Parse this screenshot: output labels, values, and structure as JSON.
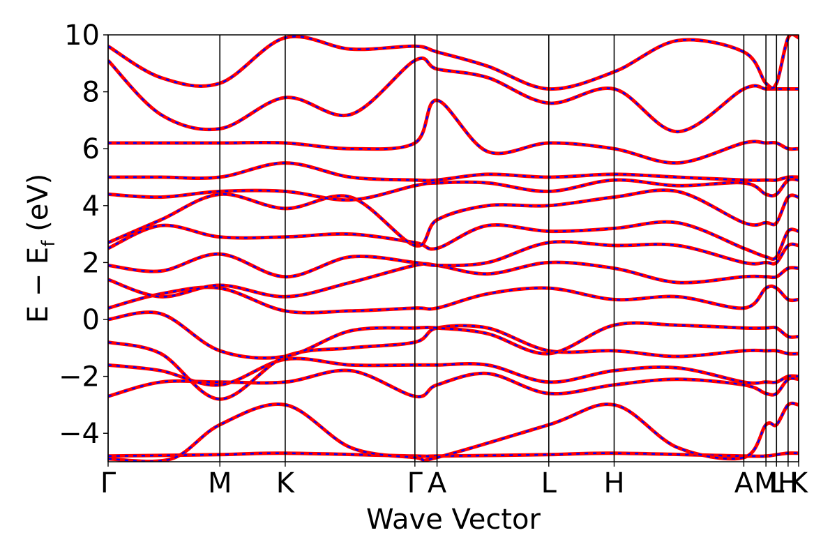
{
  "chart_data": {
    "type": "line",
    "title": "",
    "xlabel": "Wave Vector",
    "ylabel_main": "E − E",
    "ylabel_sub": "f",
    "ylabel_unit": " (eV)",
    "ylim": [
      -5,
      10
    ],
    "yticks": [
      -4,
      -2,
      0,
      2,
      4,
      6,
      8,
      10
    ],
    "ytick_labels": [
      "−4",
      "−2",
      "0",
      "2",
      "4",
      "6",
      "8",
      "10"
    ],
    "x_range": [
      0,
      6.55
    ],
    "high_symmetry_points": [
      {
        "label": "Γ",
        "x": 0.0
      },
      {
        "label": "M",
        "x": 1.06
      },
      {
        "label": "K",
        "x": 1.68
      },
      {
        "label": "Γ",
        "x": 2.91
      },
      {
        "label": "A",
        "x": 3.12
      },
      {
        "label": "L",
        "x": 4.18
      },
      {
        "label": "H",
        "x": 4.8
      },
      {
        "label": "A",
        "x": 6.03
      },
      {
        "label": "M",
        "x": 6.24
      },
      {
        "label": "L",
        "x": 6.34
      },
      {
        "label": "H",
        "x": 6.45
      },
      {
        "label": "K",
        "x": 6.55
      }
    ],
    "grid": false,
    "legend": "none",
    "series_styles": [
      {
        "color": "#ff0000",
        "style": "solid"
      },
      {
        "color": "#0000ff",
        "style": "dashed"
      }
    ],
    "bands": [
      [
        [
          0,
          -4.8
        ],
        [
          1.06,
          -4.75
        ],
        [
          1.68,
          -4.7
        ],
        [
          2.91,
          -4.8
        ],
        [
          3.12,
          -4.8
        ],
        [
          4.18,
          -4.75
        ],
        [
          4.8,
          -4.7
        ],
        [
          6.03,
          -4.8
        ],
        [
          6.24,
          -4.8
        ],
        [
          6.34,
          -4.75
        ],
        [
          6.45,
          -4.7
        ],
        [
          6.55,
          -4.7
        ]
      ],
      [
        [
          0,
          -4.9
        ],
        [
          0.6,
          -4.9
        ],
        [
          1.06,
          -3.7
        ],
        [
          1.68,
          -3.0
        ],
        [
          2.3,
          -4.5
        ],
        [
          2.91,
          -4.85
        ],
        [
          3.12,
          -4.85
        ],
        [
          4.18,
          -3.7
        ],
        [
          4.8,
          -3.0
        ],
        [
          5.4,
          -4.5
        ],
        [
          6.03,
          -4.85
        ],
        [
          6.24,
          -3.7
        ],
        [
          6.34,
          -3.7
        ],
        [
          6.45,
          -3.0
        ],
        [
          6.55,
          -3.0
        ]
      ],
      [
        [
          0,
          -2.7
        ],
        [
          0.5,
          -2.2
        ],
        [
          1.06,
          -2.2
        ],
        [
          1.68,
          -2.2
        ],
        [
          2.3,
          -1.8
        ],
        [
          2.91,
          -2.7
        ],
        [
          3.12,
          -2.3
        ],
        [
          3.6,
          -1.9
        ],
        [
          4.18,
          -2.6
        ],
        [
          4.8,
          -2.3
        ],
        [
          5.4,
          -2.1
        ],
        [
          6.03,
          -2.3
        ],
        [
          6.24,
          -2.6
        ],
        [
          6.34,
          -2.6
        ],
        [
          6.45,
          -2.1
        ],
        [
          6.55,
          -2.1
        ]
      ],
      [
        [
          0,
          -1.6
        ],
        [
          0.5,
          -1.8
        ],
        [
          1.06,
          -2.3
        ],
        [
          1.68,
          -1.4
        ],
        [
          2.3,
          -1.6
        ],
        [
          2.91,
          -1.6
        ],
        [
          3.12,
          -1.6
        ],
        [
          3.6,
          -1.6
        ],
        [
          4.18,
          -2.2
        ],
        [
          4.8,
          -1.8
        ],
        [
          5.4,
          -1.7
        ],
        [
          6.03,
          -2.2
        ],
        [
          6.24,
          -2.2
        ],
        [
          6.34,
          -2.2
        ],
        [
          6.45,
          -2.0
        ],
        [
          6.55,
          -2.0
        ]
      ],
      [
        [
          0,
          -0.8
        ],
        [
          0.5,
          -1.2
        ],
        [
          1.06,
          -2.8
        ],
        [
          1.68,
          -1.3
        ],
        [
          2.3,
          -1.0
        ],
        [
          2.91,
          -0.8
        ],
        [
          3.12,
          -0.3
        ],
        [
          3.6,
          -0.3
        ],
        [
          4.18,
          -1.1
        ],
        [
          4.8,
          -1.1
        ],
        [
          5.4,
          -1.3
        ],
        [
          6.03,
          -1.1
        ],
        [
          6.24,
          -1.1
        ],
        [
          6.34,
          -1.1
        ],
        [
          6.45,
          -1.2
        ],
        [
          6.55,
          -1.2
        ]
      ],
      [
        [
          0,
          0.0
        ],
        [
          0.5,
          0.2
        ],
        [
          1.06,
          -1.1
        ],
        [
          1.68,
          -1.3
        ],
        [
          2.3,
          -0.4
        ],
        [
          2.91,
          -0.3
        ],
        [
          3.12,
          -0.3
        ],
        [
          3.6,
          -0.5
        ],
        [
          4.18,
          -1.2
        ],
        [
          4.8,
          -0.2
        ],
        [
          5.4,
          -0.2
        ],
        [
          6.03,
          -0.3
        ],
        [
          6.24,
          -0.3
        ],
        [
          6.34,
          -0.3
        ],
        [
          6.45,
          -0.6
        ],
        [
          6.55,
          -0.6
        ]
      ],
      [
        [
          0,
          0.4
        ],
        [
          0.5,
          0.9
        ],
        [
          1.06,
          1.1
        ],
        [
          1.68,
          0.3
        ],
        [
          2.3,
          0.3
        ],
        [
          2.91,
          0.4
        ],
        [
          3.12,
          0.4
        ],
        [
          3.6,
          0.9
        ],
        [
          4.18,
          1.1
        ],
        [
          4.8,
          0.7
        ],
        [
          5.4,
          0.8
        ],
        [
          6.03,
          0.4
        ],
        [
          6.24,
          1.1
        ],
        [
          6.34,
          1.1
        ],
        [
          6.45,
          0.7
        ],
        [
          6.55,
          0.7
        ]
      ],
      [
        [
          0,
          1.4
        ],
        [
          0.5,
          0.8
        ],
        [
          1.06,
          1.2
        ],
        [
          1.68,
          0.8
        ],
        [
          2.3,
          1.3
        ],
        [
          2.91,
          1.9
        ],
        [
          3.12,
          1.9
        ],
        [
          3.6,
          1.6
        ],
        [
          4.18,
          2.0
        ],
        [
          4.8,
          1.8
        ],
        [
          5.4,
          1.3
        ],
        [
          6.03,
          1.5
        ],
        [
          6.24,
          1.5
        ],
        [
          6.34,
          1.5
        ],
        [
          6.45,
          1.8
        ],
        [
          6.55,
          1.8
        ]
      ],
      [
        [
          0,
          1.9
        ],
        [
          0.5,
          1.7
        ],
        [
          1.06,
          2.3
        ],
        [
          1.68,
          1.5
        ],
        [
          2.3,
          2.2
        ],
        [
          2.91,
          2.0
        ],
        [
          3.12,
          1.9
        ],
        [
          3.6,
          2.0
        ],
        [
          4.18,
          2.7
        ],
        [
          4.8,
          2.6
        ],
        [
          5.4,
          2.6
        ],
        [
          6.03,
          2.0
        ],
        [
          6.24,
          2.0
        ],
        [
          6.34,
          2.0
        ],
        [
          6.45,
          2.6
        ],
        [
          6.55,
          2.6
        ]
      ],
      [
        [
          0,
          2.5
        ],
        [
          0.5,
          3.3
        ],
        [
          1.06,
          2.9
        ],
        [
          1.68,
          2.9
        ],
        [
          2.3,
          3.0
        ],
        [
          2.91,
          2.7
        ],
        [
          3.12,
          2.5
        ],
        [
          3.6,
          3.3
        ],
        [
          4.18,
          3.1
        ],
        [
          4.8,
          3.2
        ],
        [
          5.4,
          3.4
        ],
        [
          6.03,
          2.5
        ],
        [
          6.24,
          2.2
        ],
        [
          6.34,
          2.2
        ],
        [
          6.45,
          3.1
        ],
        [
          6.55,
          3.1
        ]
      ],
      [
        [
          0,
          2.7
        ],
        [
          0.5,
          3.5
        ],
        [
          1.06,
          4.4
        ],
        [
          1.68,
          3.9
        ],
        [
          2.3,
          4.3
        ],
        [
          2.91,
          2.6
        ],
        [
          3.12,
          3.5
        ],
        [
          3.6,
          4.0
        ],
        [
          4.18,
          4.0
        ],
        [
          4.8,
          4.3
        ],
        [
          5.4,
          4.5
        ],
        [
          6.03,
          3.4
        ],
        [
          6.24,
          3.4
        ],
        [
          6.34,
          3.4
        ],
        [
          6.45,
          4.3
        ],
        [
          6.55,
          4.3
        ]
      ],
      [
        [
          0,
          4.4
        ],
        [
          0.5,
          4.3
        ],
        [
          1.06,
          4.5
        ],
        [
          1.68,
          4.5
        ],
        [
          2.3,
          4.2
        ],
        [
          2.91,
          4.7
        ],
        [
          3.12,
          4.8
        ],
        [
          3.6,
          4.8
        ],
        [
          4.18,
          4.5
        ],
        [
          4.8,
          4.9
        ],
        [
          5.4,
          4.7
        ],
        [
          6.03,
          4.8
        ],
        [
          6.24,
          4.4
        ],
        [
          6.34,
          4.4
        ],
        [
          6.45,
          4.9
        ],
        [
          6.55,
          4.9
        ]
      ],
      [
        [
          0,
          5.0
        ],
        [
          0.5,
          5.0
        ],
        [
          1.06,
          5.0
        ],
        [
          1.68,
          5.5
        ],
        [
          2.3,
          5.0
        ],
        [
          2.91,
          4.9
        ],
        [
          3.12,
          4.9
        ],
        [
          3.6,
          5.1
        ],
        [
          4.18,
          5.0
        ],
        [
          4.8,
          5.1
        ],
        [
          5.4,
          5.0
        ],
        [
          6.03,
          4.9
        ],
        [
          6.24,
          4.9
        ],
        [
          6.34,
          4.9
        ],
        [
          6.45,
          5.0
        ],
        [
          6.55,
          5.0
        ]
      ],
      [
        [
          0,
          6.2
        ],
        [
          0.5,
          6.2
        ],
        [
          1.06,
          6.2
        ],
        [
          1.68,
          6.2
        ],
        [
          2.3,
          6.0
        ],
        [
          2.91,
          6.2
        ],
        [
          3.12,
          7.7
        ],
        [
          3.6,
          5.9
        ],
        [
          4.18,
          6.2
        ],
        [
          4.8,
          6.0
        ],
        [
          5.4,
          5.5
        ],
        [
          6.03,
          6.2
        ],
        [
          6.24,
          6.2
        ],
        [
          6.34,
          6.2
        ],
        [
          6.45,
          6.0
        ],
        [
          6.55,
          6.0
        ]
      ],
      [
        [
          0,
          9.1
        ],
        [
          0.5,
          7.2
        ],
        [
          1.06,
          6.7
        ],
        [
          1.68,
          7.8
        ],
        [
          2.3,
          7.2
        ],
        [
          2.91,
          9.1
        ],
        [
          3.12,
          8.8
        ],
        [
          3.6,
          8.5
        ],
        [
          4.18,
          7.6
        ],
        [
          4.8,
          8.1
        ],
        [
          5.4,
          6.6
        ],
        [
          6.03,
          8.1
        ],
        [
          6.24,
          8.1
        ],
        [
          6.34,
          8.1
        ],
        [
          6.45,
          8.1
        ],
        [
          6.55,
          8.1
        ]
      ],
      [
        [
          0,
          9.6
        ],
        [
          0.5,
          8.5
        ],
        [
          1.06,
          8.3
        ],
        [
          1.68,
          9.9
        ],
        [
          2.3,
          9.5
        ],
        [
          2.91,
          9.6
        ],
        [
          3.12,
          9.4
        ],
        [
          3.6,
          8.9
        ],
        [
          4.18,
          8.1
        ],
        [
          4.8,
          8.7
        ],
        [
          5.4,
          9.8
        ],
        [
          6.03,
          9.4
        ],
        [
          6.24,
          8.3
        ],
        [
          6.34,
          8.3
        ],
        [
          6.45,
          9.9
        ],
        [
          6.55,
          9.9
        ]
      ]
    ]
  }
}
